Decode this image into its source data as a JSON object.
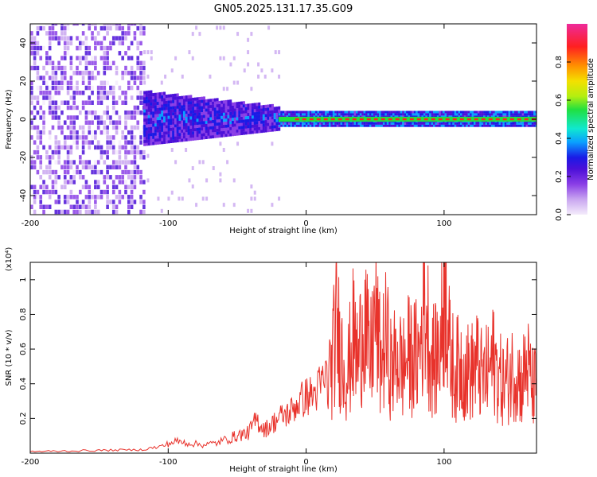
{
  "title": "GN05.2025.131.17.35.G09",
  "colors": {
    "background": "#ffffff",
    "line_series": "#e8322b",
    "axis": "#000000",
    "colormap": [
      "#f4ecfb",
      "#c9a6f0",
      "#8a3ee6",
      "#4b10d8",
      "#1a1ae6",
      "#0aa0ff",
      "#10e8d0",
      "#20e040",
      "#b4ee10",
      "#f4e000",
      "#ff9000",
      "#ff2020",
      "#ee2a9a"
    ]
  },
  "chart_data": [
    {
      "type": "heatmap",
      "title": "GN05.2025.131.17.35.G09",
      "xlabel": "Height of straight line (km)",
      "ylabel": "Frequency (Hz)",
      "xlim": [
        -200,
        167
      ],
      "ylim": [
        -50,
        50
      ],
      "xticks": [
        -200,
        -100,
        0,
        100
      ],
      "yticks": [
        -40,
        -20,
        0,
        20,
        40
      ],
      "colorbar": {
        "label": "Normalized spectral amplitude",
        "range": [
          0,
          1
        ],
        "ticks": [
          0.0,
          0.2,
          0.4,
          0.6,
          0.8
        ]
      },
      "regions": [
        {
          "x_range": [
            -200,
            -118
          ],
          "description_values": {
            "freq_span": [
              -50,
              50
            ],
            "amplitude": [
              0.05,
              0.25
            ]
          }
        },
        {
          "x_range": [
            -118,
            -20
          ],
          "description_values": {
            "freq_span": [
              -14,
              14
            ],
            "amplitude": [
              0.15,
              0.45
            ]
          }
        },
        {
          "x_range": [
            -20,
            167
          ],
          "description_values": {
            "freq_span": [
              -4,
              4
            ],
            "peak_freq": 0,
            "peak_amplitude": 0.95
          }
        }
      ]
    },
    {
      "type": "line",
      "xlabel": "Height of straight line (km)",
      "ylabel": "SNR (10 * v/v)",
      "y_multiplier": "(x10⁴)",
      "xlim": [
        -200,
        167
      ],
      "ylim": [
        0,
        1.1
      ],
      "xticks": [
        -200,
        -100,
        0,
        100
      ],
      "yticks": [
        0.2,
        0.4,
        0.6,
        0.8,
        1.0
      ],
      "series": [
        {
          "x": [
            -200,
            -180,
            -160,
            -140,
            -120,
            -105,
            -95,
            -85,
            -75,
            -65,
            -55,
            -48,
            -42,
            -36,
            -30,
            -24,
            -18,
            -12,
            -6,
            0,
            6,
            12,
            18,
            22,
            26,
            30,
            34,
            38,
            42,
            46,
            50,
            54,
            58,
            62,
            66,
            70,
            74,
            78,
            82,
            86,
            90,
            94,
            98,
            101,
            104,
            108,
            112,
            116,
            120,
            124,
            128,
            132,
            136,
            140,
            144,
            148,
            152,
            156,
            160,
            164,
            167
          ],
          "y": [
            0.01,
            0.012,
            0.015,
            0.018,
            0.02,
            0.04,
            0.07,
            0.06,
            0.05,
            0.06,
            0.09,
            0.11,
            0.12,
            0.2,
            0.14,
            0.18,
            0.22,
            0.24,
            0.3,
            0.34,
            0.35,
            0.42,
            0.5,
            0.78,
            0.6,
            0.48,
            0.7,
            0.56,
            0.9,
            0.52,
            0.84,
            0.56,
            0.7,
            0.5,
            0.6,
            0.52,
            0.6,
            0.58,
            0.6,
            0.98,
            0.6,
            0.56,
            0.7,
            1.12,
            0.6,
            0.5,
            0.55,
            0.5,
            0.5,
            0.55,
            0.45,
            0.5,
            0.57,
            0.46,
            0.42,
            0.48,
            0.52,
            0.42,
            0.55,
            0.4,
            0.42
          ]
        }
      ]
    }
  ]
}
